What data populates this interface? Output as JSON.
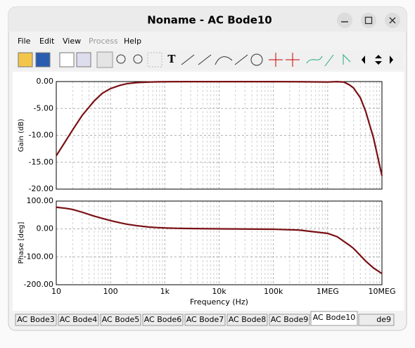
{
  "window": {
    "title": "Noname - AC Bode10",
    "menu": [
      "File",
      "Edit",
      "View",
      "Process",
      "Help"
    ],
    "tabs": [
      "AC Bode3",
      "AC Bode4",
      "AC Bode5",
      "AC Bode6",
      "AC Bode7",
      "AC Bode8",
      "AC Bode9",
      "AC Bode10",
      "de9"
    ]
  },
  "chart_data": {
    "type": "line",
    "x_label": "Frequency (Hz)",
    "xscale": "log",
    "grid": true,
    "xlim": [
      10,
      10000000
    ],
    "xticks": [
      10,
      100,
      {
        "value": 1000,
        "label": "1k"
      },
      {
        "value": 10000,
        "label": "10k"
      },
      {
        "value": 100000,
        "label": "100k"
      },
      {
        "value": 1000000,
        "label": "1MEG"
      },
      {
        "value": 10000000,
        "label": "10MEG"
      }
    ],
    "x": [
      10,
      15,
      20,
      30,
      50,
      70,
      100,
      150,
      200,
      300,
      500,
      700,
      1000,
      2000,
      5000,
      10000,
      100000,
      300000,
      1000000,
      1500000,
      2000000,
      2500000,
      3000000,
      4000000,
      5000000,
      7000000,
      10000000
    ],
    "panels": [
      {
        "y_label": "Gain (dB)",
        "ylim": [
          -20,
          0
        ],
        "yticks": [
          {
            "value": -20,
            "label": "-20.00"
          },
          {
            "value": -15,
            "label": "-15.00"
          },
          {
            "value": -10,
            "label": "-10.00"
          },
          {
            "value": -5,
            "label": "-5.00"
          },
          {
            "value": 0,
            "label": "0.00"
          }
        ],
        "series": [
          {
            "color": "#7a1014",
            "values": [
              -13.8,
              -11,
              -9,
              -6.3,
              -3.6,
              -2.2,
              -1.3,
              -0.7,
              -0.4,
              -0.2,
              -0.1,
              -0.05,
              -0.03,
              -0.02,
              -0.02,
              -0.02,
              -0.02,
              -0.03,
              -0.08,
              -0.02,
              -0.1,
              -0.6,
              -1.2,
              -3,
              -5.5,
              -10.5,
              -17.5
            ]
          }
        ]
      },
      {
        "y_label": "Phase [deg]",
        "ylim": [
          -200,
          100
        ],
        "yticks": [
          {
            "value": -200,
            "label": "-200.00"
          },
          {
            "value": -100,
            "label": "-100.00"
          },
          {
            "value": 0,
            "label": "0.00"
          },
          {
            "value": 100,
            "label": "100.00"
          }
        ],
        "series": [
          {
            "color": "#7a1014",
            "values": [
              78,
              74,
              70,
              60,
              46,
              38,
              30,
              22,
              17,
              12,
              7,
              5,
              3.5,
              2,
              1,
              0.5,
              -1,
              -4,
              -16,
              -28,
              -45,
              -58,
              -70,
              -95,
              -115,
              -140,
              -160
            ]
          }
        ]
      }
    ]
  }
}
